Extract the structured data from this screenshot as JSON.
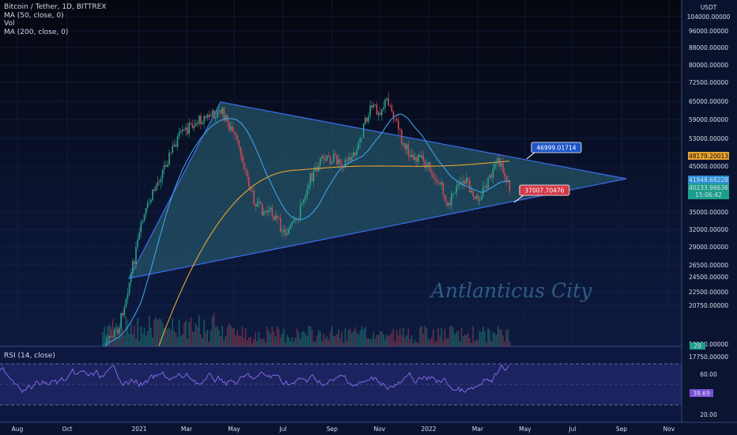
{
  "legend": {
    "symbol": "Bitcoin / Tether, 1D, BITTREX",
    "ma50": "MA (50, close, 0)",
    "vol": "Vol",
    "ma200": "MA (200, close, 0)"
  },
  "currency": "USDT",
  "watermark": "Antlanticus City",
  "price_ticks": [
    "104000.00000",
    "96000.00000",
    "88000.00000",
    "80000.00000",
    "72500.00000",
    "65000.00000",
    "59000.00000",
    "53000.00000",
    "45000.00000",
    "35000.00000",
    "32000.00000",
    "29000.00000",
    "26500.00000",
    "24500.00000",
    "22500.00000",
    "20750.00000",
    "19150.00000",
    "17750.00000"
  ],
  "time_ticks": [
    "Aug",
    "Oct",
    "2021",
    "Mar",
    "May",
    "Jul",
    "Sep",
    "Nov",
    "2022",
    "Mar",
    "May",
    "Jul",
    "Sep",
    "Nov"
  ],
  "annotations": {
    "resistance": "46999.01714",
    "support": "37007.70476"
  },
  "price_tags": {
    "ma200": "48179.20013",
    "ma50": "41948.68228",
    "last": "40233.96636",
    "countdown": "15:06:42",
    "volume": "29"
  },
  "rsi": {
    "title": "RSI (14, close)",
    "ticks": [
      "60.00",
      "20.00"
    ],
    "value": "38.69"
  },
  "colors": {
    "background": "#0b1430",
    "triangle_line": "#3d6ef0",
    "triangle_fill": "#2e6a7a",
    "ma50": "#3da2e6",
    "ma200": "#e8a330",
    "up": "#2aa58a",
    "down": "#d04a55",
    "rsi_line": "#8c6cf0",
    "watermark": "#2e5c85"
  },
  "chart_data": {
    "type": "candlestick",
    "series_name": "Bitcoin / Tether, 1D, BITTREX",
    "annotations": [
      {
        "label": "46999.01714",
        "type": "resistance"
      },
      {
        "label": "37007.70476",
        "type": "support"
      }
    ],
    "y_scale": "log"
  }
}
